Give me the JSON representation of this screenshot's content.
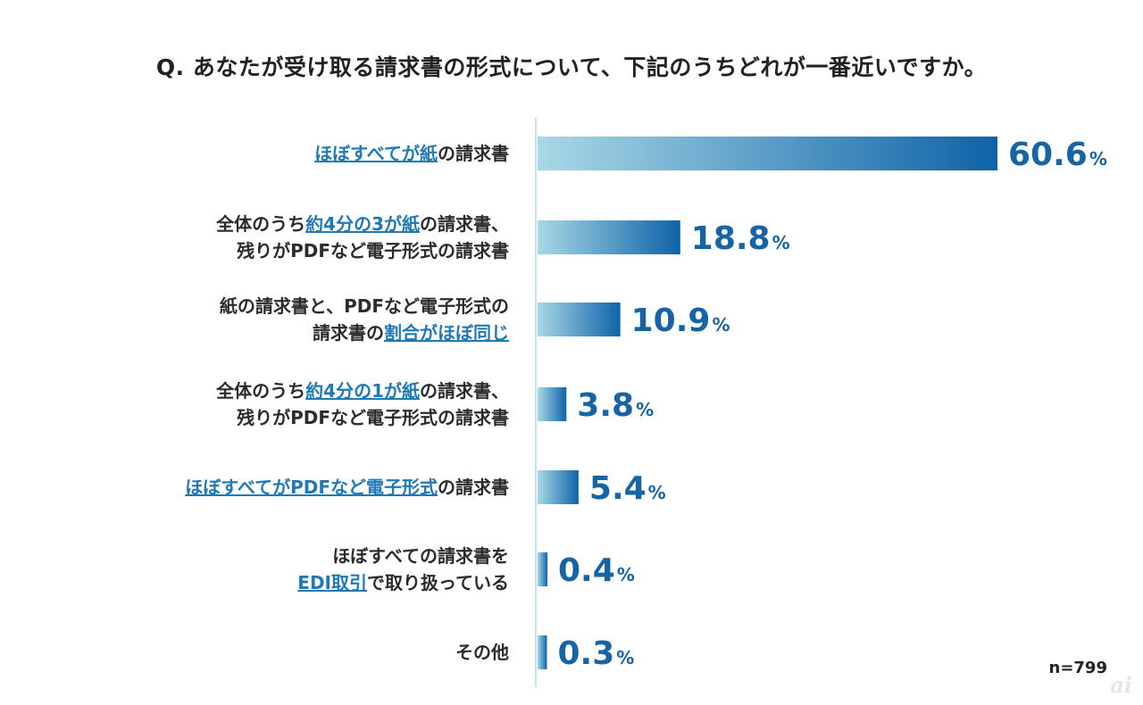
{
  "header": {
    "title": "Q. あなたが受け取る請求書の形式について、下記のうちどれが一番近いですか。"
  },
  "chart_data": {
    "type": "bar",
    "orientation": "horizontal",
    "title": "Q. あなたが受け取る請求書の形式について、下記のうちどれが一番近いですか。",
    "unit": "%",
    "xlim": [
      0,
      60.6
    ],
    "categories": [
      "ほぼすべてが紙の請求書",
      "全体のうち約4分の3が紙の請求書、残りがPDFなど電子形式の請求書",
      "紙の請求書と、PDFなど電子形式の請求書の割合がほぼ同じ",
      "全体のうち約4分の1が紙の請求書、残りがPDFなど電子形式の請求書",
      "ほぼすべてがPDFなど電子形式の請求書",
      "ほぼすべての請求書をEDI取引で取り扱っている",
      "その他"
    ],
    "label_lines": [
      [
        [
          {
            "t": "ほぼすべてが紙",
            "hl": true
          },
          {
            "t": "の請求書",
            "hl": false
          }
        ]
      ],
      [
        [
          {
            "t": "全体のうち",
            "hl": false
          },
          {
            "t": "約4分の3が紙",
            "hl": true
          },
          {
            "t": "の請求書、",
            "hl": false
          }
        ],
        [
          {
            "t": "残りがPDFなど電子形式の請求書",
            "hl": false
          }
        ]
      ],
      [
        [
          {
            "t": "紙の請求書と、PDFなど電子形式の",
            "hl": false
          }
        ],
        [
          {
            "t": "請求書の",
            "hl": false
          },
          {
            "t": "割合がほぼ同じ",
            "hl": true
          }
        ]
      ],
      [
        [
          {
            "t": "全体のうち",
            "hl": false
          },
          {
            "t": "約4分の1が紙",
            "hl": true
          },
          {
            "t": "の請求書、",
            "hl": false
          }
        ],
        [
          {
            "t": "残りがPDFなど電子形式の請求書",
            "hl": false
          }
        ]
      ],
      [
        [
          {
            "t": "ほぼすべてがPDFなど電子形式",
            "hl": true
          },
          {
            "t": "の請求書",
            "hl": false
          }
        ]
      ],
      [
        [
          {
            "t": "ほぼすべての請求書を",
            "hl": false
          }
        ],
        [
          {
            "t": "EDI取引",
            "hl": true
          },
          {
            "t": "で取り扱っている",
            "hl": false
          }
        ]
      ],
      [
        [
          {
            "t": "その他",
            "hl": false
          }
        ]
      ]
    ],
    "values": [
      60.6,
      18.8,
      10.9,
      3.8,
      5.4,
      0.4,
      0.3
    ],
    "value_labels": [
      "60.6",
      "18.8",
      "10.9",
      "3.8",
      "5.4",
      "0.4",
      "0.3"
    ],
    "pct_symbol": "%",
    "colors": {
      "bar_start": "#a9d8e6",
      "bar_end": "#0e63a8",
      "highlight": "#1f79b5",
      "axis": "#bfe3ef"
    }
  },
  "footer": {
    "sample_size": "n=799",
    "logo": "ai"
  }
}
